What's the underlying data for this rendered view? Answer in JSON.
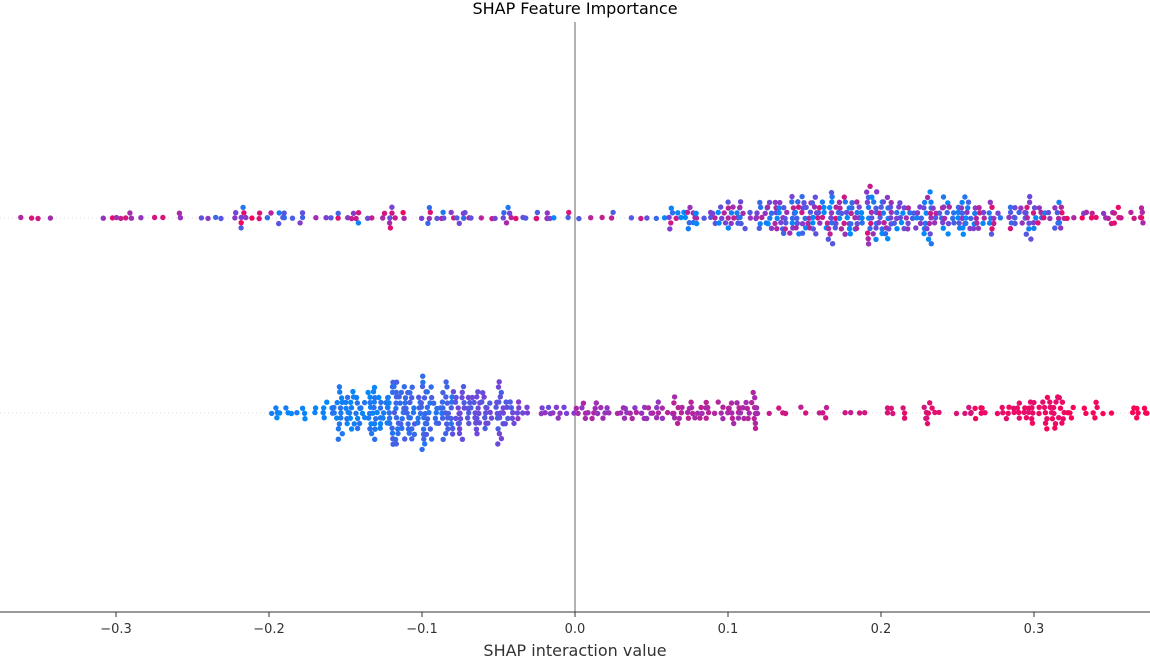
{
  "chart_data": {
    "type": "scatter",
    "subtype": "shap-beeswarm",
    "title": "SHAP Feature Importance",
    "xlabel": "SHAP interaction value",
    "xlim": [
      -0.375,
      0.375
    ],
    "xticks": [
      "−0.3",
      "−0.2",
      "−0.1",
      "0.0",
      "0.1",
      "0.2",
      "0.3"
    ],
    "xtick_values": [
      -0.3,
      -0.2,
      -0.1,
      0.0,
      0.1,
      0.2,
      0.3
    ],
    "zero_line": 0.0,
    "grid": false,
    "legend": "none",
    "colormap": {
      "low": "#008afb",
      "mid": "#7d3fd4",
      "high": "#ff0052"
    },
    "rows": [
      {
        "name": "",
        "approx_points": 520,
        "density": [
          {
            "range": [
              -0.375,
              -0.26
            ],
            "count": 14,
            "mean_feature_value": 0.7,
            "spread": 0.2
          },
          {
            "range": [
              -0.26,
              -0.16
            ],
            "count": 30,
            "mean_feature_value": 0.55,
            "spread": 0.45
          },
          {
            "range": [
              -0.16,
              -0.1
            ],
            "count": 22,
            "mean_feature_value": 0.5,
            "spread": 0.45
          },
          {
            "range": [
              -0.1,
              -0.06
            ],
            "count": 18,
            "mean_feature_value": 0.55,
            "spread": 0.45
          },
          {
            "range": [
              -0.06,
              0.0
            ],
            "count": 20,
            "mean_feature_value": 0.45,
            "spread": 0.45
          },
          {
            "range": [
              0.0,
              0.06
            ],
            "count": 10,
            "mean_feature_value": 0.4,
            "spread": 0.4
          },
          {
            "range": [
              0.06,
              0.12
            ],
            "count": 55,
            "mean_feature_value": 0.35,
            "spread": 0.45
          },
          {
            "range": [
              0.12,
              0.2
            ],
            "count": 150,
            "mean_feature_value": 0.4,
            "spread": 0.45
          },
          {
            "range": [
              0.2,
              0.26
            ],
            "count": 100,
            "mean_feature_value": 0.35,
            "spread": 0.45
          },
          {
            "range": [
              0.26,
              0.32
            ],
            "count": 70,
            "mean_feature_value": 0.45,
            "spread": 0.45
          },
          {
            "range": [
              0.32,
              0.375
            ],
            "count": 25,
            "mean_feature_value": 0.75,
            "spread": 0.25
          }
        ]
      },
      {
        "name": "",
        "approx_points": 520,
        "density": [
          {
            "range": [
              -0.2,
              -0.16
            ],
            "count": 18,
            "mean_feature_value": 0.05,
            "spread": 0.05
          },
          {
            "range": [
              -0.16,
              -0.12
            ],
            "count": 80,
            "mean_feature_value": 0.1,
            "spread": 0.08
          },
          {
            "range": [
              -0.12,
              -0.08
            ],
            "count": 110,
            "mean_feature_value": 0.22,
            "spread": 0.1
          },
          {
            "range": [
              -0.08,
              -0.04
            ],
            "count": 80,
            "mean_feature_value": 0.38,
            "spread": 0.1
          },
          {
            "range": [
              -0.04,
              0.0
            ],
            "count": 20,
            "mean_feature_value": 0.5,
            "spread": 0.08
          },
          {
            "range": [
              0.0,
              0.06
            ],
            "count": 40,
            "mean_feature_value": 0.62,
            "spread": 0.08
          },
          {
            "range": [
              0.06,
              0.12
            ],
            "count": 60,
            "mean_feature_value": 0.7,
            "spread": 0.06
          },
          {
            "range": [
              0.12,
              0.2
            ],
            "count": 14,
            "mean_feature_value": 0.78,
            "spread": 0.05
          },
          {
            "range": [
              0.2,
              0.26
            ],
            "count": 22,
            "mean_feature_value": 0.85,
            "spread": 0.05
          },
          {
            "range": [
              0.26,
              0.32
            ],
            "count": 55,
            "mean_feature_value": 0.93,
            "spread": 0.04
          },
          {
            "range": [
              0.32,
              0.375
            ],
            "count": 20,
            "mean_feature_value": 0.97,
            "spread": 0.03
          }
        ]
      }
    ]
  }
}
